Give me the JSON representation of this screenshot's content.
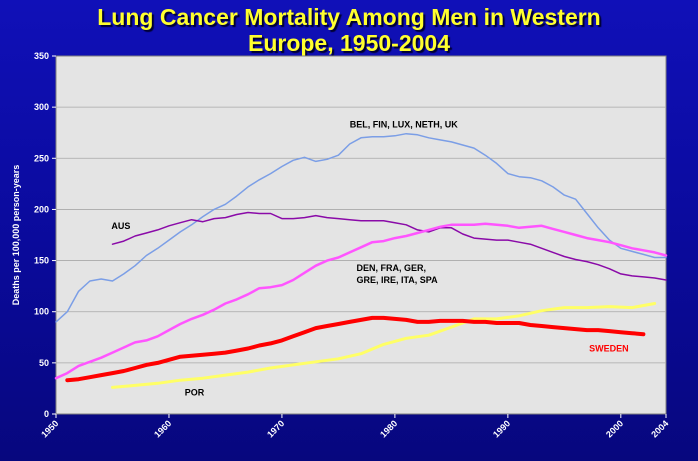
{
  "title_line1": "Lung Cancer Mortality Among Men in Western",
  "title_line2": "Europe, 1950-2004",
  "chart_data": {
    "type": "line",
    "title": "Lung Cancer Mortality Among Men in Western Europe, 1950-2004",
    "xlabel": "",
    "ylabel": "Deaths per 100,000 person-years",
    "xlim": [
      1950,
      2004
    ],
    "ylim": [
      0,
      350
    ],
    "x_ticks": [
      "1950",
      "1960",
      "1970",
      "1980",
      "1990",
      "2000",
      "2004"
    ],
    "y_ticks": [
      "0",
      "50",
      "100",
      "150",
      "200",
      "250",
      "300",
      "350"
    ],
    "grid": "horizontal",
    "plot_background": "#e4e4e4",
    "series": [
      {
        "name": "BEL, FIN, LUX, NETH, UK",
        "color": "#7b9ee6",
        "stroke": 1.5,
        "x": [
          1950,
          1951,
          1952,
          1953,
          1954,
          1955,
          1956,
          1957,
          1958,
          1959,
          1960,
          1961,
          1962,
          1963,
          1964,
          1965,
          1966,
          1967,
          1968,
          1969,
          1970,
          1971,
          1972,
          1973,
          1974,
          1975,
          1976,
          1977,
          1978,
          1979,
          1980,
          1981,
          1982,
          1983,
          1984,
          1985,
          1986,
          1987,
          1988,
          1989,
          1990,
          1991,
          1992,
          1993,
          1994,
          1995,
          1996,
          1997,
          1998,
          1999,
          2000,
          2001,
          2002,
          2003,
          2004
        ],
        "y": [
          90,
          100,
          120,
          130,
          132,
          130,
          137,
          145,
          155,
          162,
          170,
          178,
          185,
          193,
          200,
          205,
          213,
          222,
          229,
          235,
          242,
          248,
          251,
          247,
          249,
          253,
          264,
          270,
          271,
          271,
          272,
          274,
          273,
          270,
          268,
          266,
          263,
          260,
          253,
          245,
          235,
          232,
          231,
          228,
          222,
          214,
          210,
          196,
          182,
          170,
          162,
          159,
          156,
          153,
          153
        ]
      },
      {
        "name": "AUS",
        "color": "#8a0aa8",
        "stroke": 1.5,
        "x": [
          1955,
          1956,
          1957,
          1958,
          1959,
          1960,
          1961,
          1962,
          1963,
          1964,
          1965,
          1966,
          1967,
          1968,
          1969,
          1970,
          1971,
          1972,
          1973,
          1974,
          1975,
          1976,
          1977,
          1978,
          1979,
          1980,
          1981,
          1982,
          1983,
          1984,
          1985,
          1986,
          1987,
          1988,
          1989,
          1990,
          1991,
          1992,
          1993,
          1994,
          1995,
          1996,
          1997,
          1998,
          1999,
          2000,
          2001,
          2002,
          2003,
          2004
        ],
        "y": [
          166,
          169,
          174,
          177,
          180,
          184,
          187,
          190,
          188,
          191,
          192,
          195,
          197,
          196,
          196,
          191,
          191,
          192,
          194,
          192,
          191,
          190,
          189,
          189,
          189,
          187,
          185,
          180,
          178,
          182,
          182,
          176,
          172,
          171,
          170,
          170,
          168,
          166,
          162,
          158,
          154,
          151,
          149,
          146,
          142,
          137,
          135,
          134,
          133,
          131
        ]
      },
      {
        "name": "DEN, FRA, GER, GRE, IRE, ITA, SPA",
        "color": "#ff55ff",
        "stroke": 2.5,
        "x": [
          1950,
          1951,
          1952,
          1953,
          1954,
          1955,
          1956,
          1957,
          1958,
          1959,
          1960,
          1961,
          1962,
          1963,
          1964,
          1965,
          1966,
          1967,
          1968,
          1969,
          1970,
          1971,
          1972,
          1973,
          1974,
          1975,
          1976,
          1977,
          1978,
          1979,
          1980,
          1981,
          1982,
          1983,
          1984,
          1985,
          1986,
          1987,
          1988,
          1989,
          1990,
          1991,
          1992,
          1993,
          1994,
          1995,
          1996,
          1997,
          1998,
          1999,
          2000,
          2001,
          2002,
          2003,
          2004
        ],
        "y": [
          35,
          40,
          47,
          51,
          55,
          60,
          65,
          70,
          72,
          76,
          82,
          88,
          93,
          97,
          102,
          108,
          112,
          117,
          123,
          124,
          126,
          131,
          138,
          145,
          150,
          153,
          158,
          163,
          168,
          169,
          172,
          174,
          177,
          180,
          183,
          185,
          185,
          185,
          186,
          185,
          184,
          182,
          183,
          184,
          181,
          178,
          175,
          172,
          170,
          168,
          165,
          162,
          160,
          158,
          155
        ]
      },
      {
        "name": "POR",
        "color": "#ffff66",
        "stroke": 3,
        "x": [
          1955,
          1957,
          1959,
          1961,
          1963,
          1965,
          1967,
          1969,
          1971,
          1973,
          1975,
          1977,
          1979,
          1981,
          1983,
          1985,
          1987,
          1989,
          1991,
          1993,
          1995,
          1997,
          1999,
          2001,
          2003
        ],
        "y": [
          26,
          28,
          30,
          33,
          35,
          38,
          41,
          45,
          48,
          51,
          54,
          59,
          68,
          74,
          77,
          85,
          93,
          93,
          96,
          101,
          104,
          104,
          105,
          104,
          108
        ]
      },
      {
        "name": "SWEDEN",
        "color": "#ff0000",
        "stroke": 4,
        "x": [
          1951,
          1952,
          1953,
          1954,
          1955,
          1956,
          1957,
          1958,
          1959,
          1960,
          1961,
          1962,
          1963,
          1964,
          1965,
          1966,
          1967,
          1968,
          1969,
          1970,
          1971,
          1972,
          1973,
          1974,
          1975,
          1976,
          1977,
          1978,
          1979,
          1980,
          1981,
          1982,
          1983,
          1984,
          1985,
          1986,
          1987,
          1988,
          1989,
          1990,
          1991,
          1992,
          1993,
          1994,
          1995,
          1996,
          1997,
          1998,
          1999,
          2000,
          2001,
          2002
        ],
        "y": [
          33,
          34,
          36,
          38,
          40,
          42,
          45,
          48,
          50,
          53,
          56,
          57,
          58,
          59,
          60,
          62,
          64,
          67,
          69,
          72,
          76,
          80,
          84,
          86,
          88,
          90,
          92,
          94,
          94,
          93,
          92,
          90,
          90,
          91,
          91,
          91,
          90,
          90,
          89,
          89,
          89,
          87,
          86,
          85,
          84,
          83,
          82,
          82,
          81,
          80,
          79,
          78
        ]
      }
    ],
    "annotations": [
      {
        "key": "bel",
        "text": "BEL, FIN, LUX, NETH, UK",
        "x": 1976.0,
        "y": 280
      },
      {
        "key": "aus",
        "text": "AUS",
        "x": 1954.9,
        "y": 181
      },
      {
        "key": "den1",
        "text": "DEN, FRA, GER,",
        "x": 1976.6,
        "y": 140
      },
      {
        "key": "den2",
        "text": "GRE, IRE, ITA, SPA",
        "x": 1976.6,
        "y": 128
      },
      {
        "key": "por",
        "text": "POR",
        "x": 1961.4,
        "y": 18
      },
      {
        "key": "sweden",
        "text": "SWEDEN",
        "x": 1997.2,
        "y": 61,
        "color": "#ff0000"
      }
    ]
  }
}
